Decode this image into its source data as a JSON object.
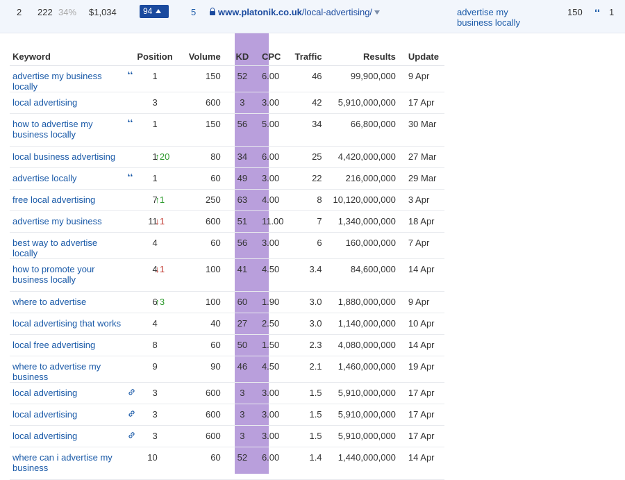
{
  "summary": {
    "index": "2",
    "number": "222",
    "percent": "34%",
    "value": "$1,034",
    "badge": "94",
    "count": "5",
    "url_domain": "www.platonik.co.uk",
    "url_path": "/local-advertising/",
    "keyword": "advertise my business locally",
    "volume": "150",
    "position": "1"
  },
  "table": {
    "headers": {
      "keyword": "Keyword",
      "position": "Position",
      "volume": "Volume",
      "kd": "KD",
      "cpc": "CPC",
      "traffic": "Traffic",
      "results": "Results",
      "update": "Update"
    },
    "rows": [
      {
        "keyword": "advertise my business locally",
        "icon": "quote",
        "position": "1",
        "delta": "",
        "dir": "",
        "volume": "150",
        "kd": "52",
        "cpc": "6.00",
        "traffic": "46",
        "results": "99,900,000",
        "update": "9 Apr"
      },
      {
        "keyword": "local advertising",
        "icon": "",
        "position": "3",
        "delta": "",
        "dir": "",
        "volume": "600",
        "kd": "3",
        "cpc": "3.00",
        "traffic": "42",
        "results": "5,910,000,000",
        "update": "17 Apr"
      },
      {
        "keyword": "how to advertise my business locally",
        "icon": "quote",
        "position": "1",
        "delta": "",
        "dir": "",
        "volume": "150",
        "kd": "56",
        "cpc": "5.00",
        "traffic": "34",
        "results": "66,800,000",
        "update": "30 Mar"
      },
      {
        "keyword": "local business advertising",
        "icon": "",
        "position": "1",
        "delta": "20",
        "dir": "up",
        "volume": "80",
        "kd": "34",
        "cpc": "6.00",
        "traffic": "25",
        "results": "4,420,000,000",
        "update": "27 Mar"
      },
      {
        "keyword": "advertise locally",
        "icon": "quote",
        "position": "1",
        "delta": "",
        "dir": "",
        "volume": "60",
        "kd": "49",
        "cpc": "3.00",
        "traffic": "22",
        "results": "216,000,000",
        "update": "29 Mar"
      },
      {
        "keyword": "free local advertising",
        "icon": "",
        "position": "7",
        "delta": "1",
        "dir": "up",
        "volume": "250",
        "kd": "63",
        "cpc": "4.00",
        "traffic": "8",
        "results": "10,120,000,000",
        "update": "3 Apr"
      },
      {
        "keyword": "advertise my business",
        "icon": "",
        "position": "11",
        "delta": "1",
        "dir": "down",
        "volume": "600",
        "kd": "51",
        "cpc": "11.00",
        "traffic": "7",
        "results": "1,340,000,000",
        "update": "18 Apr"
      },
      {
        "keyword": "best way to advertise locally",
        "icon": "",
        "position": "4",
        "delta": "",
        "dir": "",
        "volume": "60",
        "kd": "56",
        "cpc": "3.00",
        "traffic": "6",
        "results": "160,000,000",
        "update": "7 Apr"
      },
      {
        "keyword": "how to promote your business locally",
        "icon": "",
        "position": "4",
        "delta": "1",
        "dir": "down",
        "volume": "100",
        "kd": "41",
        "cpc": "4.50",
        "traffic": "3.4",
        "results": "84,600,000",
        "update": "14 Apr"
      },
      {
        "keyword": "where to advertise",
        "icon": "",
        "position": "6",
        "delta": "3",
        "dir": "up",
        "volume": "100",
        "kd": "60",
        "cpc": "1.90",
        "traffic": "3.0",
        "results": "1,880,000,000",
        "update": "9 Apr"
      },
      {
        "keyword": "local advertising that works",
        "icon": "",
        "position": "4",
        "delta": "",
        "dir": "",
        "volume": "40",
        "kd": "27",
        "cpc": "2.50",
        "traffic": "3.0",
        "results": "1,140,000,000",
        "update": "10 Apr"
      },
      {
        "keyword": "local free advertising",
        "icon": "",
        "position": "8",
        "delta": "",
        "dir": "",
        "volume": "60",
        "kd": "50",
        "cpc": "1.50",
        "traffic": "2.3",
        "results": "4,080,000,000",
        "update": "14 Apr"
      },
      {
        "keyword": "where to advertise my business",
        "icon": "",
        "position": "9",
        "delta": "",
        "dir": "",
        "volume": "90",
        "kd": "46",
        "cpc": "4.50",
        "traffic": "2.1",
        "results": "1,460,000,000",
        "update": "19 Apr"
      },
      {
        "keyword": "local advertising",
        "icon": "link",
        "position": "3",
        "delta": "",
        "dir": "",
        "volume": "600",
        "kd": "3",
        "cpc": "3.00",
        "traffic": "1.5",
        "results": "5,910,000,000",
        "update": "17 Apr"
      },
      {
        "keyword": "local advertising",
        "icon": "link",
        "position": "3",
        "delta": "",
        "dir": "",
        "volume": "600",
        "kd": "3",
        "cpc": "3.00",
        "traffic": "1.5",
        "results": "5,910,000,000",
        "update": "17 Apr"
      },
      {
        "keyword": "local advertising",
        "icon": "link",
        "position": "3",
        "delta": "",
        "dir": "",
        "volume": "600",
        "kd": "3",
        "cpc": "3.00",
        "traffic": "1.5",
        "results": "5,910,000,000",
        "update": "17 Apr"
      },
      {
        "keyword": "where can i advertise my business",
        "icon": "",
        "position": "10",
        "delta": "",
        "dir": "",
        "volume": "60",
        "kd": "52",
        "cpc": "6.00",
        "traffic": "1.4",
        "results": "1,440,000,000",
        "update": "14 Apr"
      }
    ]
  }
}
